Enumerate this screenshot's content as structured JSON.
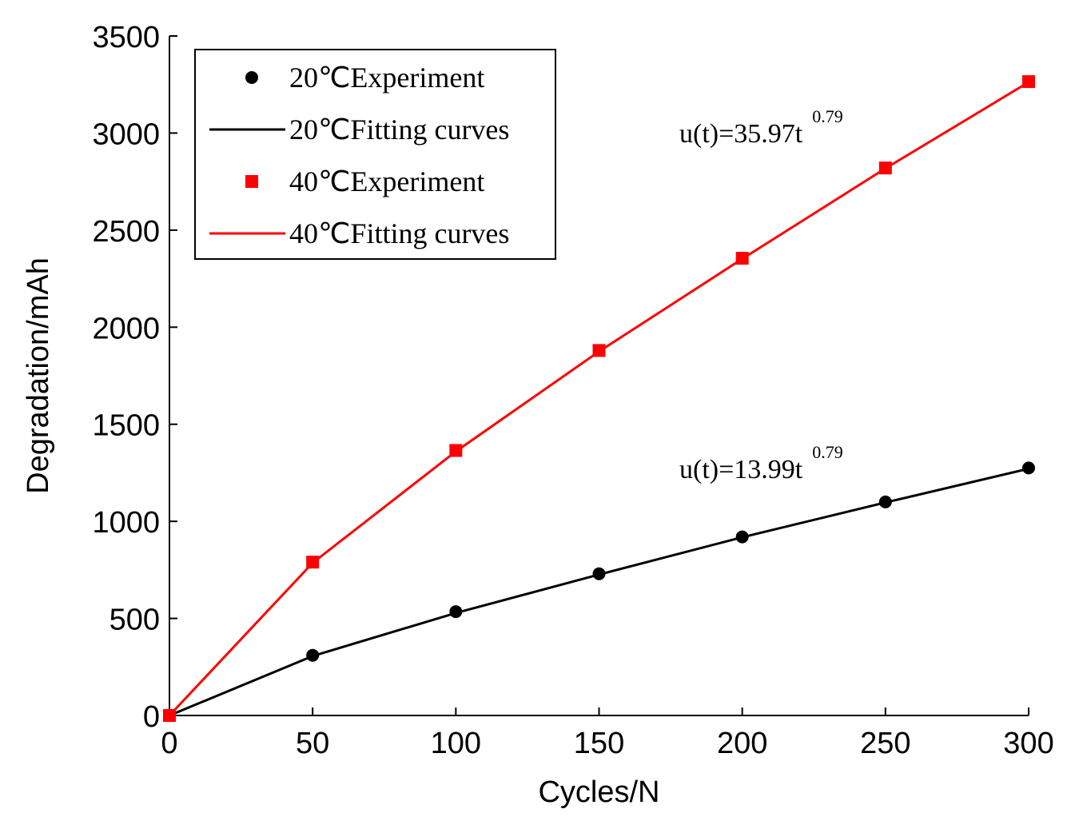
{
  "chart_data": {
    "type": "line",
    "title": "",
    "xlabel": "Cycles/N",
    "ylabel": "Degradation/mAh",
    "xlim": [
      0,
      300
    ],
    "ylim": [
      0,
      3500
    ],
    "xticks": [
      0,
      50,
      100,
      150,
      200,
      250,
      300
    ],
    "yticks": [
      0,
      500,
      1000,
      1500,
      2000,
      2500,
      3000,
      3500
    ],
    "x": [
      0,
      50,
      100,
      150,
      200,
      250,
      300
    ],
    "series": [
      {
        "name": "20℃Experiment",
        "kind": "scatter",
        "marker": "circle",
        "color": "#000000",
        "values": [
          0,
          310,
          535,
          730,
          920,
          1100,
          1275
        ]
      },
      {
        "name": "20℃Fitting curves",
        "kind": "line",
        "color": "#000000",
        "values": [
          0,
          306,
          528,
          726,
          918,
          1097,
          1271
        ]
      },
      {
        "name": "40℃Experiment",
        "kind": "scatter",
        "marker": "square",
        "color": "#ff0000",
        "values": [
          0,
          790,
          1365,
          1880,
          2355,
          2820,
          3265
        ]
      },
      {
        "name": "40℃Fitting curves",
        "kind": "line",
        "color": "#ff0000",
        "values": [
          0,
          786,
          1360,
          1875,
          2352,
          2818,
          3262
        ]
      }
    ],
    "legend_position": "top-left",
    "annotations": [
      {
        "base": "u(t)=35.97t",
        "exponent": "0.79",
        "series": "40℃Fitting curves"
      },
      {
        "base": "u(t)=13.99t",
        "exponent": "0.79",
        "series": "20℃Fitting curves"
      }
    ],
    "grid": false
  }
}
